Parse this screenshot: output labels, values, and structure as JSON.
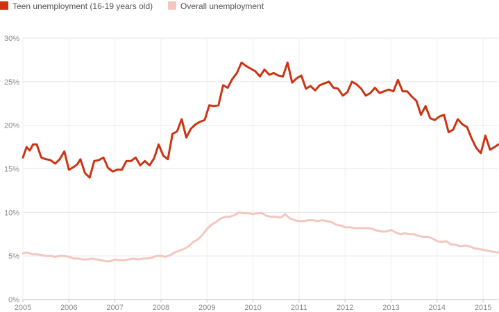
{
  "chart_data": {
    "type": "line",
    "title": "",
    "xlabel": "",
    "ylabel": "",
    "xlim": [
      2005.0,
      2015.33
    ],
    "ylim": [
      0,
      30
    ],
    "y_ticks": [
      "0%",
      "5%",
      "10%",
      "15%",
      "20%",
      "25%",
      "30%"
    ],
    "y_tick_values": [
      0,
      5,
      10,
      15,
      20,
      25,
      30
    ],
    "x_ticks": [
      "2005",
      "2006",
      "2007",
      "2008",
      "2009",
      "2010",
      "2011",
      "2012",
      "2013",
      "2014",
      "2015"
    ],
    "x_tick_values": [
      2005,
      2006,
      2007,
      2008,
      2009,
      2010,
      2011,
      2012,
      2013,
      2014,
      2015
    ],
    "grid": true,
    "legend_position": "top-left",
    "series": [
      {
        "name": "Teen unemployment (16-19 years old)",
        "color": "#cc3311",
        "x": [
          2005.0,
          2005.08,
          2005.15,
          2005.22,
          2005.3,
          2005.4,
          2005.5,
          2005.6,
          2005.7,
          2005.8,
          2005.9,
          2006.0,
          2006.1,
          2006.18,
          2006.25,
          2006.35,
          2006.45,
          2006.55,
          2006.65,
          2006.75,
          2006.85,
          2006.95,
          2007.05,
          2007.15,
          2007.25,
          2007.35,
          2007.45,
          2007.55,
          2007.65,
          2007.75,
          2007.85,
          2007.95,
          2008.05,
          2008.15,
          2008.25,
          2008.35,
          2008.45,
          2008.55,
          2008.65,
          2008.75,
          2008.85,
          2008.95,
          2009.05,
          2009.15,
          2009.25,
          2009.35,
          2009.45,
          2009.55,
          2009.65,
          2009.75,
          2009.85,
          2009.95,
          2010.05,
          2010.15,
          2010.25,
          2010.35,
          2010.45,
          2010.55,
          2010.65,
          2010.75,
          2010.85,
          2010.95,
          2011.05,
          2011.15,
          2011.25,
          2011.35,
          2011.45,
          2011.55,
          2011.65,
          2011.75,
          2011.85,
          2011.95,
          2012.05,
          2012.15,
          2012.25,
          2012.35,
          2012.45,
          2012.55,
          2012.65,
          2012.75,
          2012.85,
          2012.95,
          2013.05,
          2013.15,
          2013.25,
          2013.35,
          2013.45,
          2013.55,
          2013.65,
          2013.75,
          2013.85,
          2013.95,
          2014.05,
          2014.15,
          2014.25,
          2014.35,
          2014.45,
          2014.55,
          2014.65,
          2014.75,
          2014.85,
          2014.95,
          2015.05,
          2015.15,
          2015.25,
          2015.33
        ],
        "values": [
          16.3,
          17.5,
          17.1,
          17.8,
          17.8,
          16.3,
          16.1,
          16.0,
          15.6,
          16.1,
          17.0,
          14.9,
          15.2,
          15.5,
          16.1,
          14.5,
          14.0,
          15.9,
          16.0,
          16.3,
          15.1,
          14.7,
          14.9,
          14.9,
          15.9,
          15.9,
          16.3,
          15.4,
          15.9,
          15.4,
          16.2,
          17.8,
          16.5,
          16.1,
          19.0,
          19.3,
          20.7,
          18.6,
          19.6,
          20.1,
          20.4,
          20.6,
          22.3,
          22.2,
          22.3,
          24.6,
          24.3,
          25.3,
          26.0,
          27.2,
          26.8,
          26.5,
          26.2,
          25.6,
          26.4,
          25.8,
          26.0,
          25.7,
          25.6,
          27.2,
          24.9,
          25.4,
          25.7,
          24.2,
          24.5,
          24.0,
          24.6,
          24.8,
          25.0,
          24.3,
          24.2,
          23.4,
          23.8,
          25.0,
          24.7,
          24.2,
          23.4,
          23.7,
          24.3,
          23.7,
          23.9,
          24.1,
          23.9,
          25.2,
          23.9,
          23.9,
          23.3,
          22.8,
          21.2,
          22.2,
          20.8,
          20.6,
          21.0,
          21.2,
          19.2,
          19.5,
          20.7,
          20.1,
          19.8,
          18.5,
          17.4,
          16.8,
          18.8,
          17.2,
          17.5,
          17.8
        ]
      },
      {
        "name": "Overall unemployment",
        "color": "#f5c6c0",
        "x": [
          2005.0,
          2005.08,
          2005.2,
          2005.3,
          2005.4,
          2005.5,
          2005.6,
          2005.7,
          2005.8,
          2005.9,
          2006.0,
          2006.1,
          2006.2,
          2006.3,
          2006.4,
          2006.5,
          2006.6,
          2006.7,
          2006.8,
          2006.9,
          2007.0,
          2007.1,
          2007.2,
          2007.3,
          2007.4,
          2007.5,
          2007.6,
          2007.7,
          2007.8,
          2007.9,
          2008.0,
          2008.1,
          2008.2,
          2008.3,
          2008.4,
          2008.5,
          2008.6,
          2008.7,
          2008.8,
          2008.9,
          2009.0,
          2009.1,
          2009.2,
          2009.3,
          2009.4,
          2009.5,
          2009.6,
          2009.7,
          2009.8,
          2009.9,
          2010.0,
          2010.1,
          2010.2,
          2010.3,
          2010.4,
          2010.5,
          2010.6,
          2010.7,
          2010.8,
          2010.9,
          2011.0,
          2011.1,
          2011.2,
          2011.3,
          2011.4,
          2011.5,
          2011.6,
          2011.7,
          2011.8,
          2011.9,
          2012.0,
          2012.1,
          2012.2,
          2012.3,
          2012.4,
          2012.5,
          2012.6,
          2012.7,
          2012.8,
          2012.9,
          2013.0,
          2013.1,
          2013.2,
          2013.3,
          2013.4,
          2013.5,
          2013.6,
          2013.7,
          2013.8,
          2013.9,
          2014.0,
          2014.1,
          2014.2,
          2014.3,
          2014.4,
          2014.5,
          2014.6,
          2014.7,
          2014.8,
          2014.9,
          2015.0,
          2015.1,
          2015.2,
          2015.33
        ],
        "values": [
          5.3,
          5.4,
          5.2,
          5.2,
          5.1,
          5.0,
          5.0,
          4.9,
          5.0,
          5.0,
          4.9,
          4.7,
          4.7,
          4.6,
          4.6,
          4.7,
          4.6,
          4.5,
          4.4,
          4.4,
          4.6,
          4.5,
          4.5,
          4.6,
          4.7,
          4.6,
          4.7,
          4.7,
          4.8,
          5.0,
          5.0,
          4.9,
          5.1,
          5.4,
          5.6,
          5.8,
          6.1,
          6.6,
          6.9,
          7.4,
          8.1,
          8.6,
          8.9,
          9.3,
          9.5,
          9.5,
          9.7,
          10.0,
          9.9,
          9.9,
          9.8,
          9.9,
          9.9,
          9.6,
          9.5,
          9.5,
          9.4,
          9.8,
          9.3,
          9.1,
          9.0,
          9.0,
          9.1,
          9.1,
          9.0,
          9.1,
          9.0,
          8.9,
          8.6,
          8.5,
          8.3,
          8.3,
          8.2,
          8.2,
          8.2,
          8.2,
          8.1,
          7.9,
          7.8,
          7.8,
          8.0,
          7.7,
          7.5,
          7.6,
          7.5,
          7.5,
          7.3,
          7.2,
          7.2,
          7.0,
          6.7,
          6.6,
          6.7,
          6.3,
          6.3,
          6.1,
          6.2,
          6.1,
          5.9,
          5.8,
          5.7,
          5.6,
          5.5,
          5.4
        ]
      }
    ]
  }
}
